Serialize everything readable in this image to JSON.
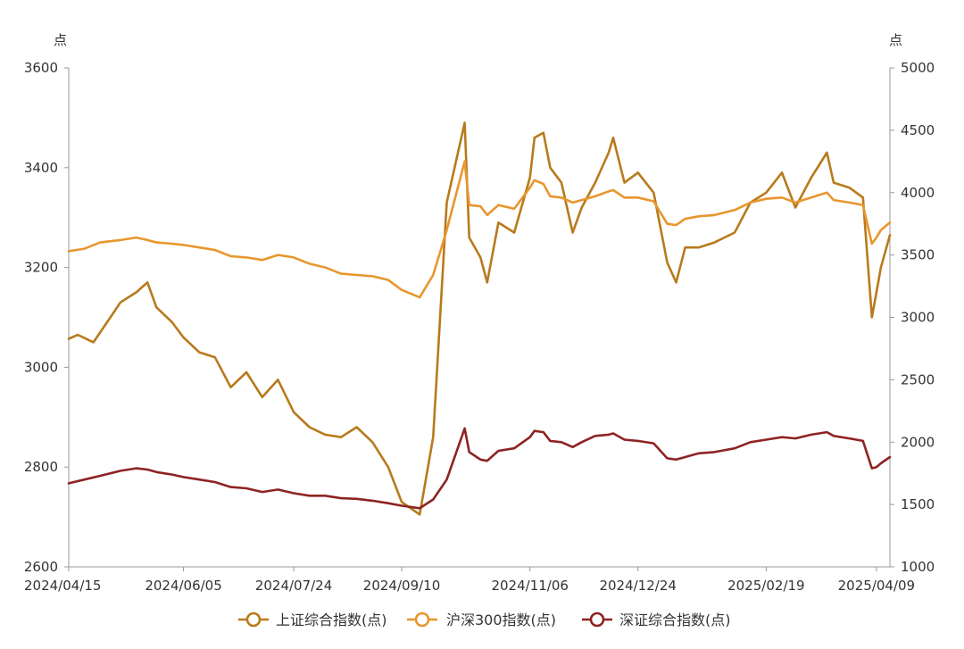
{
  "chart_data": {
    "type": "line",
    "title": "",
    "left_unit": "点",
    "right_unit": "点",
    "x_tick_labels": [
      "2024/04/15",
      "2024/06/05",
      "2024/07/24",
      "2024/09/10",
      "2024/11/06",
      "2024/12/24",
      "2025/02/19",
      "2025/04/09"
    ],
    "y_left": {
      "min": 2600,
      "max": 3600,
      "ticks": [
        2600,
        2800,
        3000,
        3200,
        3400,
        3600
      ]
    },
    "y_right": {
      "min": 1000,
      "max": 5000,
      "ticks": [
        1000,
        1500,
        2000,
        2500,
        3000,
        3500,
        4000,
        4500,
        5000
      ]
    },
    "legend_position": "bottom",
    "grid": false,
    "series": [
      {
        "name": "上证综合指数(点)",
        "axis": "left",
        "color": "#B87A1C",
        "points": [
          [
            "2024/04/15",
            3057
          ],
          [
            "2024/04/19",
            3065
          ],
          [
            "2024/04/26",
            3050
          ],
          [
            "2024/05/08",
            3130
          ],
          [
            "2024/05/15",
            3150
          ],
          [
            "2024/05/20",
            3170
          ],
          [
            "2024/05/24",
            3120
          ],
          [
            "2024/05/31",
            3090
          ],
          [
            "2024/06/05",
            3060
          ],
          [
            "2024/06/12",
            3030
          ],
          [
            "2024/06/19",
            3020
          ],
          [
            "2024/06/26",
            2960
          ],
          [
            "2024/07/03",
            2990
          ],
          [
            "2024/07/10",
            2940
          ],
          [
            "2024/07/17",
            2975
          ],
          [
            "2024/07/24",
            2910
          ],
          [
            "2024/07/31",
            2880
          ],
          [
            "2024/08/07",
            2865
          ],
          [
            "2024/08/14",
            2860
          ],
          [
            "2024/08/21",
            2880
          ],
          [
            "2024/08/28",
            2850
          ],
          [
            "2024/09/04",
            2800
          ],
          [
            "2024/09/10",
            2730
          ],
          [
            "2024/09/18",
            2705
          ],
          [
            "2024/09/24",
            2860
          ],
          [
            "2024/09/30",
            3330
          ],
          [
            "2024/10/08",
            3490
          ],
          [
            "2024/10/10",
            3260
          ],
          [
            "2024/10/15",
            3220
          ],
          [
            "2024/10/18",
            3170
          ],
          [
            "2024/10/23",
            3290
          ],
          [
            "2024/10/30",
            3270
          ],
          [
            "2024/11/06",
            3380
          ],
          [
            "2024/11/08",
            3460
          ],
          [
            "2024/11/12",
            3470
          ],
          [
            "2024/11/15",
            3400
          ],
          [
            "2024/11/20",
            3370
          ],
          [
            "2024/11/25",
            3270
          ],
          [
            "2024/11/29",
            3320
          ],
          [
            "2024/12/05",
            3370
          ],
          [
            "2024/12/11",
            3430
          ],
          [
            "2024/12/13",
            3460
          ],
          [
            "2024/12/18",
            3370
          ],
          [
            "2024/12/24",
            3390
          ],
          [
            "2024/12/31",
            3350
          ],
          [
            "2025/01/06",
            3210
          ],
          [
            "2025/01/10",
            3170
          ],
          [
            "2025/01/14",
            3240
          ],
          [
            "2025/01/20",
            3240
          ],
          [
            "2025/01/27",
            3250
          ],
          [
            "2025/02/05",
            3270
          ],
          [
            "2025/02/12",
            3330
          ],
          [
            "2025/02/19",
            3350
          ],
          [
            "2025/02/26",
            3390
          ],
          [
            "2025/03/04",
            3320
          ],
          [
            "2025/03/11",
            3380
          ],
          [
            "2025/03/18",
            3430
          ],
          [
            "2025/03/21",
            3370
          ],
          [
            "2025/03/28",
            3360
          ],
          [
            "2025/04/03",
            3340
          ],
          [
            "2025/04/07",
            3100
          ],
          [
            "2025/04/09",
            3150
          ],
          [
            "2025/04/11",
            3200
          ],
          [
            "2025/04/15",
            3265
          ]
        ]
      },
      {
        "name": "沪深300指数(点)",
        "axis": "right",
        "color": "#E8962E",
        "points": [
          [
            "2024/04/15",
            3530
          ],
          [
            "2024/04/22",
            3550
          ],
          [
            "2024/04/29",
            3600
          ],
          [
            "2024/05/08",
            3620
          ],
          [
            "2024/05/15",
            3640
          ],
          [
            "2024/05/20",
            3620
          ],
          [
            "2024/05/24",
            3600
          ],
          [
            "2024/05/31",
            3590
          ],
          [
            "2024/06/05",
            3580
          ],
          [
            "2024/06/12",
            3560
          ],
          [
            "2024/06/19",
            3540
          ],
          [
            "2024/06/26",
            3490
          ],
          [
            "2024/07/03",
            3480
          ],
          [
            "2024/07/10",
            3460
          ],
          [
            "2024/07/17",
            3500
          ],
          [
            "2024/07/24",
            3480
          ],
          [
            "2024/07/31",
            3430
          ],
          [
            "2024/08/07",
            3400
          ],
          [
            "2024/08/14",
            3350
          ],
          [
            "2024/08/21",
            3340
          ],
          [
            "2024/08/28",
            3330
          ],
          [
            "2024/09/04",
            3300
          ],
          [
            "2024/09/10",
            3220
          ],
          [
            "2024/09/18",
            3160
          ],
          [
            "2024/09/24",
            3340
          ],
          [
            "2024/09/30",
            3700
          ],
          [
            "2024/10/08",
            4250
          ],
          [
            "2024/10/10",
            3900
          ],
          [
            "2024/10/15",
            3890
          ],
          [
            "2024/10/18",
            3820
          ],
          [
            "2024/10/23",
            3900
          ],
          [
            "2024/10/30",
            3870
          ],
          [
            "2024/11/06",
            4040
          ],
          [
            "2024/11/08",
            4100
          ],
          [
            "2024/11/12",
            4070
          ],
          [
            "2024/11/15",
            3970
          ],
          [
            "2024/11/20",
            3960
          ],
          [
            "2024/11/25",
            3920
          ],
          [
            "2024/11/29",
            3940
          ],
          [
            "2024/12/05",
            3970
          ],
          [
            "2024/12/11",
            4010
          ],
          [
            "2024/12/13",
            4020
          ],
          [
            "2024/12/18",
            3960
          ],
          [
            "2024/12/24",
            3960
          ],
          [
            "2024/12/31",
            3930
          ],
          [
            "2025/01/06",
            3750
          ],
          [
            "2025/01/10",
            3740
          ],
          [
            "2025/01/14",
            3790
          ],
          [
            "2025/01/20",
            3810
          ],
          [
            "2025/01/27",
            3820
          ],
          [
            "2025/02/05",
            3860
          ],
          [
            "2025/02/12",
            3920
          ],
          [
            "2025/02/19",
            3950
          ],
          [
            "2025/02/26",
            3960
          ],
          [
            "2025/03/04",
            3920
          ],
          [
            "2025/03/11",
            3960
          ],
          [
            "2025/03/18",
            4000
          ],
          [
            "2025/03/21",
            3940
          ],
          [
            "2025/03/28",
            3920
          ],
          [
            "2025/04/03",
            3900
          ],
          [
            "2025/04/07",
            3590
          ],
          [
            "2025/04/09",
            3640
          ],
          [
            "2025/04/11",
            3700
          ],
          [
            "2025/04/15",
            3760
          ]
        ]
      },
      {
        "name": "深证综合指数(点)",
        "axis": "right",
        "color": "#8E2323",
        "points": [
          [
            "2024/04/15",
            1670
          ],
          [
            "2024/04/22",
            1700
          ],
          [
            "2024/04/29",
            1730
          ],
          [
            "2024/05/08",
            1770
          ],
          [
            "2024/05/15",
            1790
          ],
          [
            "2024/05/20",
            1780
          ],
          [
            "2024/05/24",
            1760
          ],
          [
            "2024/05/31",
            1740
          ],
          [
            "2024/06/05",
            1720
          ],
          [
            "2024/06/12",
            1700
          ],
          [
            "2024/06/19",
            1680
          ],
          [
            "2024/06/26",
            1640
          ],
          [
            "2024/07/03",
            1630
          ],
          [
            "2024/07/10",
            1600
          ],
          [
            "2024/07/17",
            1620
          ],
          [
            "2024/07/24",
            1590
          ],
          [
            "2024/07/31",
            1570
          ],
          [
            "2024/08/07",
            1570
          ],
          [
            "2024/08/14",
            1550
          ],
          [
            "2024/08/21",
            1545
          ],
          [
            "2024/08/28",
            1530
          ],
          [
            "2024/09/04",
            1510
          ],
          [
            "2024/09/10",
            1490
          ],
          [
            "2024/09/18",
            1470
          ],
          [
            "2024/09/24",
            1540
          ],
          [
            "2024/09/30",
            1700
          ],
          [
            "2024/10/08",
            2110
          ],
          [
            "2024/10/10",
            1920
          ],
          [
            "2024/10/15",
            1860
          ],
          [
            "2024/10/18",
            1850
          ],
          [
            "2024/10/23",
            1930
          ],
          [
            "2024/10/30",
            1950
          ],
          [
            "2024/11/06",
            2040
          ],
          [
            "2024/11/08",
            2090
          ],
          [
            "2024/11/12",
            2080
          ],
          [
            "2024/11/15",
            2010
          ],
          [
            "2024/11/20",
            2000
          ],
          [
            "2024/11/25",
            1960
          ],
          [
            "2024/11/29",
            2000
          ],
          [
            "2024/12/05",
            2050
          ],
          [
            "2024/12/11",
            2060
          ],
          [
            "2024/12/13",
            2070
          ],
          [
            "2024/12/18",
            2020
          ],
          [
            "2024/12/24",
            2010
          ],
          [
            "2024/12/31",
            1990
          ],
          [
            "2025/01/06",
            1870
          ],
          [
            "2025/01/10",
            1860
          ],
          [
            "2025/01/14",
            1880
          ],
          [
            "2025/01/20",
            1910
          ],
          [
            "2025/01/27",
            1920
          ],
          [
            "2025/02/05",
            1950
          ],
          [
            "2025/02/12",
            2000
          ],
          [
            "2025/02/19",
            2020
          ],
          [
            "2025/02/26",
            2040
          ],
          [
            "2025/03/04",
            2030
          ],
          [
            "2025/03/11",
            2060
          ],
          [
            "2025/03/18",
            2080
          ],
          [
            "2025/03/21",
            2050
          ],
          [
            "2025/03/28",
            2030
          ],
          [
            "2025/04/03",
            2010
          ],
          [
            "2025/04/07",
            1790
          ],
          [
            "2025/04/09",
            1800
          ],
          [
            "2025/04/11",
            1830
          ],
          [
            "2025/04/15",
            1880
          ]
        ]
      }
    ]
  }
}
